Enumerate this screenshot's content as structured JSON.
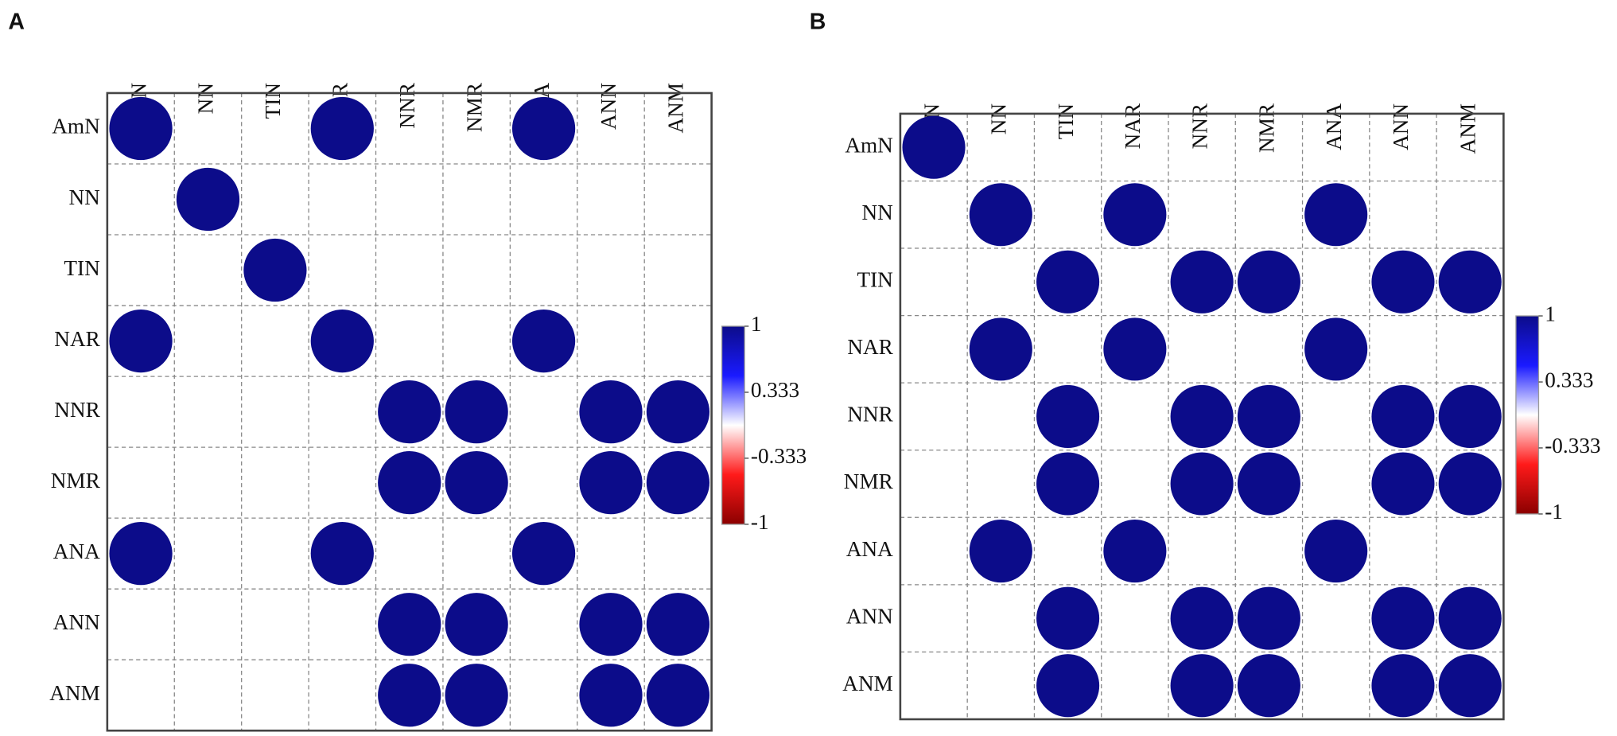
{
  "chart_data": [
    {
      "type": "correlation",
      "label": "A",
      "x_categories": [
        "AmN",
        "NN",
        "TIN",
        "NAR",
        "NNR",
        "NMR",
        "ANA",
        "ANN",
        "ANM"
      ],
      "y_categories": [
        "AmN",
        "NN",
        "TIN",
        "NAR",
        "NNR",
        "NMR",
        "ANA",
        "ANN",
        "ANM"
      ],
      "values": [
        [
          1,
          0,
          0,
          1,
          0,
          0,
          1,
          0,
          0
        ],
        [
          0,
          1,
          0,
          0,
          0,
          0,
          0,
          0,
          0
        ],
        [
          0,
          0,
          1,
          0,
          0,
          0,
          0,
          0,
          0
        ],
        [
          1,
          0,
          0,
          1,
          0,
          0,
          1,
          0,
          0
        ],
        [
          0,
          0,
          0,
          0,
          1,
          1,
          0,
          1,
          1
        ],
        [
          0,
          0,
          0,
          0,
          1,
          1,
          0,
          1,
          1
        ],
        [
          1,
          0,
          0,
          1,
          0,
          0,
          1,
          0,
          0
        ],
        [
          0,
          0,
          0,
          0,
          1,
          1,
          0,
          1,
          1
        ],
        [
          0,
          0,
          0,
          0,
          1,
          1,
          0,
          1,
          1
        ]
      ],
      "clim": [
        -1,
        1
      ],
      "cticks": [
        1,
        0.333,
        -0.333,
        -1
      ],
      "colors": [
        "#8b0000",
        "#ff1a1a",
        "#ffffff",
        "#1a1aff",
        "#0c0c8a"
      ]
    },
    {
      "type": "correlation",
      "label": "B",
      "x_categories": [
        "AmN",
        "NN",
        "TIN",
        "NAR",
        "NNR",
        "NMR",
        "ANA",
        "ANN",
        "ANM"
      ],
      "y_categories": [
        "AmN",
        "NN",
        "TIN",
        "NAR",
        "NNR",
        "NMR",
        "ANA",
        "ANN",
        "ANM"
      ],
      "values": [
        [
          1,
          0,
          0,
          0,
          0,
          0,
          0,
          0,
          0
        ],
        [
          0,
          1,
          0,
          1,
          0,
          0,
          1,
          0,
          0
        ],
        [
          0,
          0,
          1,
          0,
          1,
          1,
          0,
          1,
          1
        ],
        [
          0,
          1,
          0,
          1,
          0,
          0,
          1,
          0,
          0
        ],
        [
          0,
          0,
          1,
          0,
          1,
          1,
          0,
          1,
          1
        ],
        [
          0,
          0,
          1,
          0,
          1,
          1,
          0,
          1,
          1
        ],
        [
          0,
          1,
          0,
          1,
          0,
          0,
          1,
          0,
          0
        ],
        [
          0,
          0,
          1,
          0,
          1,
          1,
          0,
          1,
          1
        ],
        [
          0,
          0,
          1,
          0,
          1,
          1,
          0,
          1,
          1
        ]
      ],
      "clim": [
        -1,
        1
      ],
      "cticks": [
        1,
        0.333,
        -0.333,
        -1
      ],
      "colors": [
        "#8b0000",
        "#ff1a1a",
        "#ffffff",
        "#1a1aff",
        "#0c0c8a"
      ]
    }
  ]
}
